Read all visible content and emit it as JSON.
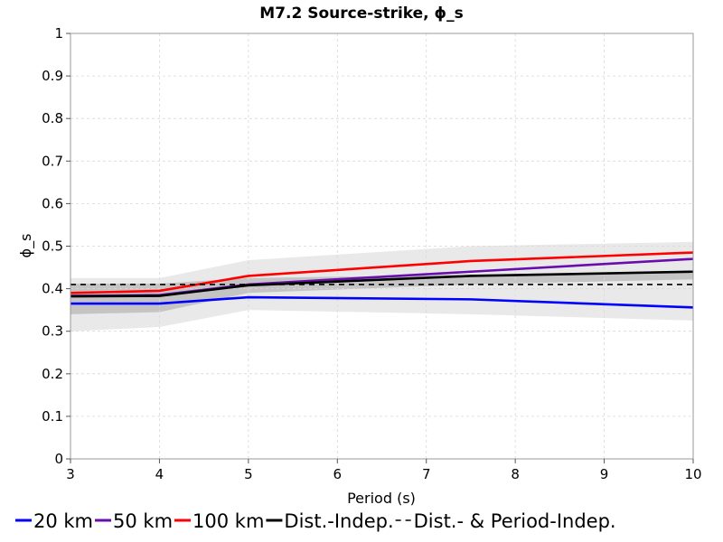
{
  "chart_data": {
    "type": "line",
    "title": "M7.2 Source-strike, ϕ_s",
    "xlabel": "Period (s)",
    "ylabel": "ϕ_s",
    "xlim": [
      3,
      10
    ],
    "ylim": [
      0,
      1
    ],
    "x_ticks": [
      3,
      4,
      5,
      6,
      7,
      8,
      9,
      10
    ],
    "x_tick_labels": [
      "3",
      "4",
      "5",
      "6",
      "7",
      "8",
      "9",
      "10"
    ],
    "y_ticks": [
      0,
      0.1,
      0.2,
      0.3,
      0.4,
      0.5,
      0.6,
      0.7,
      0.8,
      0.9,
      1
    ],
    "y_tick_labels": [
      "0",
      "0.1",
      "0.2",
      "0.3",
      "0.4",
      "0.5",
      "0.6",
      "0.7",
      "0.8",
      "0.9",
      "1"
    ],
    "grid": true,
    "legend_position": "bottom",
    "series": [
      {
        "name": "20 km",
        "color": "#0000ff",
        "style": "solid",
        "x": [
          3,
          4,
          5,
          7.5,
          10
        ],
        "y": [
          0.365,
          0.365,
          0.38,
          0.375,
          0.356
        ]
      },
      {
        "name": "50 km",
        "color": "#6a0dad",
        "style": "solid",
        "x": [
          3,
          4,
          5,
          7.5,
          10
        ],
        "y": [
          0.383,
          0.385,
          0.41,
          0.44,
          0.47
        ]
      },
      {
        "name": "100 km",
        "color": "#ff0000",
        "style": "solid",
        "x": [
          3,
          4,
          5,
          7.5,
          10
        ],
        "y": [
          0.39,
          0.395,
          0.43,
          0.465,
          0.485
        ]
      },
      {
        "name": "Dist.-Indep.",
        "color": "#000000",
        "style": "solid",
        "x": [
          3,
          4,
          5,
          7.5,
          10
        ],
        "y": [
          0.382,
          0.383,
          0.408,
          0.43,
          0.44
        ]
      },
      {
        "name": "Dist.- & Period-Indep.",
        "color": "#000000",
        "style": "dashed",
        "x": [
          3,
          10
        ],
        "y": [
          0.41,
          0.41
        ]
      }
    ],
    "bands": [
      {
        "color": "#e9e9e9",
        "x": [
          3,
          4,
          5,
          7.5,
          10
        ],
        "upper": [
          0.425,
          0.425,
          0.467,
          0.5,
          0.51
        ],
        "lower": [
          0.3,
          0.31,
          0.35,
          0.34,
          0.325
        ]
      },
      {
        "color": "#c4c4c4",
        "x": [
          3,
          4,
          5,
          7.5,
          10
        ],
        "upper": [
          0.412,
          0.412,
          0.425,
          0.433,
          0.442
        ],
        "lower": [
          0.34,
          0.345,
          0.39,
          0.41,
          0.422
        ]
      }
    ]
  }
}
